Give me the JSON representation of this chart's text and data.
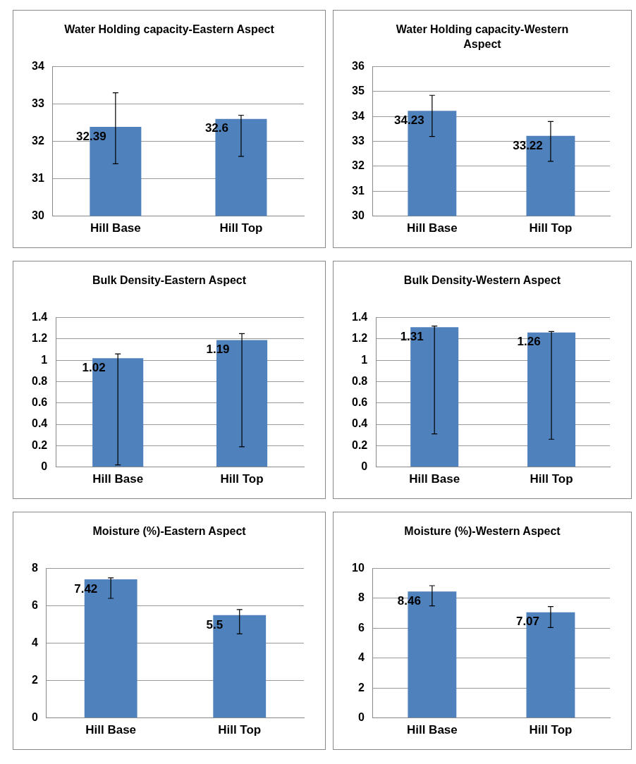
{
  "chart_data": [
    {
      "type": "bar",
      "title": "Water Holding capacity-Eastern Aspect",
      "categories": [
        "Hill Base",
        "Hill Top"
      ],
      "values": [
        32.39,
        32.6
      ],
      "color": "#4f81bd",
      "errors": [
        [
          31.4,
          33.3
        ],
        [
          31.6,
          32.7
        ]
      ],
      "ylim": [
        30,
        34
      ],
      "yticks": [
        30,
        31,
        32,
        33,
        34
      ],
      "grid": "y",
      "data_labels": true
    },
    {
      "type": "bar",
      "title": "Water Holding capacity-Western Aspect",
      "categories": [
        "Hill Base",
        "Hill Top"
      ],
      "values": [
        34.23,
        33.22
      ],
      "color": "#4f81bd",
      "errors": [
        [
          33.2,
          34.85
        ],
        [
          32.2,
          33.8
        ]
      ],
      "ylim": [
        30,
        36
      ],
      "yticks": [
        30,
        31,
        32,
        33,
        34,
        35,
        36
      ],
      "grid": "y",
      "data_labels": true
    },
    {
      "type": "bar",
      "title": "Bulk Density-Eastern Aspect",
      "categories": [
        "Hill Base",
        "Hill Top"
      ],
      "values": [
        1.02,
        1.19
      ],
      "color": "#4f81bd",
      "errors": [
        [
          0.02,
          1.06
        ],
        [
          0.19,
          1.25
        ]
      ],
      "ylim": [
        0,
        1.4
      ],
      "yticks": [
        0,
        0.2,
        0.4,
        0.6,
        0.8,
        1,
        1.2,
        1.4
      ],
      "grid": "y",
      "data_labels": true
    },
    {
      "type": "bar",
      "title": "Bulk Density-Western Aspect",
      "categories": [
        "Hill Base",
        "Hill Top"
      ],
      "values": [
        1.31,
        1.26
      ],
      "color": "#4f81bd",
      "errors": [
        [
          0.31,
          1.32
        ],
        [
          0.26,
          1.27
        ]
      ],
      "ylim": [
        0,
        1.4
      ],
      "yticks": [
        0,
        0.2,
        0.4,
        0.6,
        0.8,
        1,
        1.2,
        1.4
      ],
      "grid": "y",
      "data_labels": true
    },
    {
      "type": "bar",
      "title": "Moisture (%)-Eastern Aspect",
      "categories": [
        "Hill Base",
        "Hill Top"
      ],
      "values": [
        7.42,
        5.5
      ],
      "color": "#4f81bd",
      "errors": [
        [
          6.4,
          7.5
        ],
        [
          4.5,
          5.8
        ]
      ],
      "ylim": [
        0,
        8
      ],
      "yticks": [
        0,
        2,
        4,
        6,
        8
      ],
      "grid": "y",
      "data_labels": true
    },
    {
      "type": "bar",
      "title": "Moisture (%)-Western Aspect",
      "categories": [
        "Hill Base",
        "Hill Top"
      ],
      "values": [
        8.46,
        7.07
      ],
      "color": "#4f81bd",
      "errors": [
        [
          7.5,
          8.85
        ],
        [
          6.05,
          7.45
        ]
      ],
      "ylim": [
        0,
        10
      ],
      "yticks": [
        0,
        2,
        4,
        6,
        8,
        10
      ],
      "grid": "y",
      "data_labels": true
    }
  ]
}
